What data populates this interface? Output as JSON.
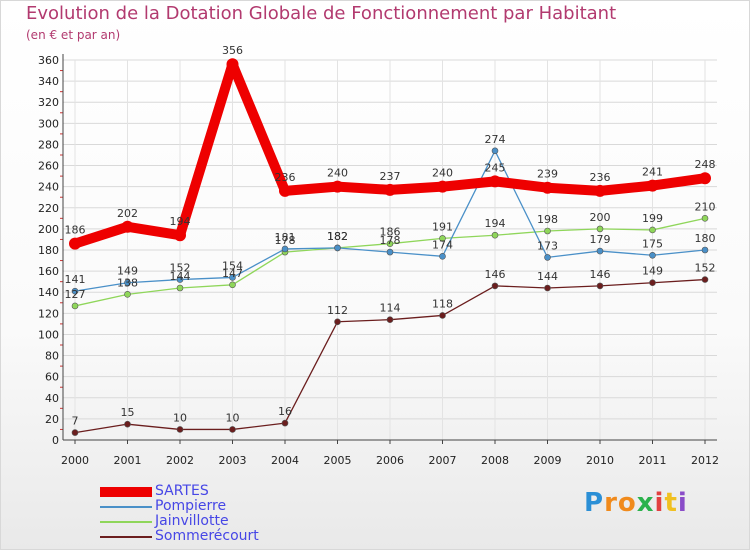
{
  "title": "Evolution de la Dotation Globale de Fonctionnement par Habitant",
  "subtitle": "(en € et par an)",
  "chart_data": {
    "type": "line",
    "title": "Evolution de la Dotation Globale de Fonctionnement par Habitant",
    "subtitle": "(en € et par an)",
    "x": [
      "2000",
      "2001",
      "2002",
      "2003",
      "2004",
      "2005",
      "2006",
      "2007",
      "2008",
      "2009",
      "2010",
      "2011",
      "2012"
    ],
    "ylim": [
      0,
      360
    ],
    "yticks": [
      0,
      20,
      40,
      60,
      80,
      100,
      120,
      140,
      160,
      180,
      200,
      220,
      240,
      260,
      280,
      300,
      320,
      340,
      360
    ],
    "grid": true,
    "legend_position": "bottom-left",
    "series": [
      {
        "name": "SARTES",
        "color": "#ee0000",
        "values": [
          186,
          202,
          194,
          356,
          236,
          240,
          237,
          240,
          245,
          239,
          236,
          241,
          248
        ]
      },
      {
        "name": "Pompierre",
        "color": "#4a90c8",
        "values": [
          141,
          149,
          152,
          154,
          181,
          182,
          178,
          174,
          274,
          173,
          179,
          175,
          180
        ]
      },
      {
        "name": "Jainvillotte",
        "color": "#8fd65a",
        "values": [
          127,
          138,
          144,
          147,
          178,
          182,
          186,
          191,
          194,
          198,
          200,
          199,
          210
        ]
      },
      {
        "name": "Sommerécourt",
        "color": "#6b1e1e",
        "values": [
          7,
          15,
          10,
          10,
          16,
          112,
          114,
          118,
          146,
          144,
          146,
          149,
          152
        ]
      }
    ]
  },
  "legend": [
    {
      "label": "SARTES",
      "color": "#ee0000"
    },
    {
      "label": "Pompierre",
      "color": "#4a90c8"
    },
    {
      "label": "Jainvillotte",
      "color": "#8fd65a"
    },
    {
      "label": "Sommerécourt",
      "color": "#6b1e1e"
    }
  ],
  "logo": {
    "letters": [
      "P",
      "r",
      "o",
      "x",
      "i",
      "t",
      "i"
    ],
    "colors": [
      "#2b8fd6",
      "#f08a1c",
      "#f08a1c",
      "#2bb24c",
      "#e24040",
      "#f0c020",
      "#8a4cc8"
    ]
  }
}
